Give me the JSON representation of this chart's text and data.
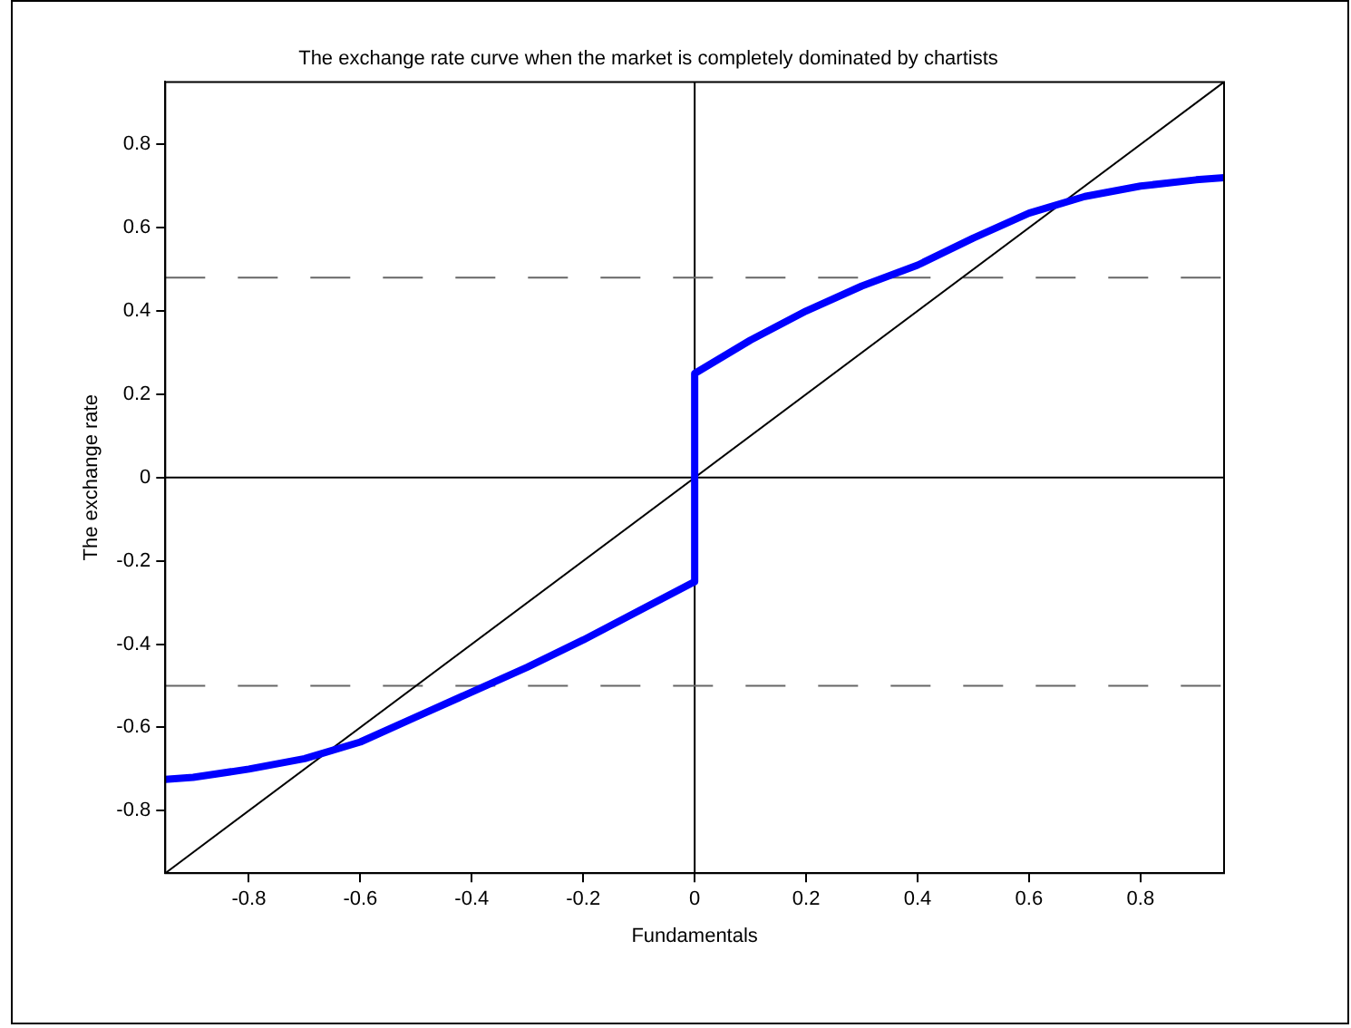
{
  "chart_data": {
    "type": "line",
    "title": "The exchange rate curve when the market is completely dominated by chartists",
    "xlabel": "Fundamentals",
    "ylabel": "The exchange rate",
    "xlim": [
      -0.95,
      0.95
    ],
    "ylim": [
      -0.95,
      0.95
    ],
    "xticks": [
      -0.8,
      -0.6,
      -0.4,
      -0.2,
      0,
      0.2,
      0.4,
      0.6,
      0.8
    ],
    "yticks": [
      -0.8,
      -0.6,
      -0.4,
      -0.2,
      0,
      0.2,
      0.4,
      0.6,
      0.8
    ],
    "grid": false,
    "legend": false,
    "marker": "none",
    "line_style": "solid",
    "series": [
      {
        "color": "#0000ff",
        "x": [
          -0.95,
          -0.9,
          -0.8,
          -0.7,
          -0.6,
          -0.5,
          -0.4,
          -0.3,
          -0.2,
          -0.1,
          0,
          0,
          0.1,
          0.2,
          0.3,
          0.4,
          0.5,
          0.6,
          0.7,
          0.8,
          0.9,
          0.95
        ],
        "values": [
          -0.725,
          -0.72,
          -0.7,
          -0.675,
          -0.635,
          -0.575,
          -0.515,
          -0.455,
          -0.39,
          -0.32,
          -0.25,
          0.25,
          0.33,
          0.4,
          0.46,
          0.51,
          0.575,
          0.635,
          0.675,
          0.7,
          0.715,
          0.72
        ]
      },
      {
        "color": "#000000",
        "x": [
          -0.95,
          0.95
        ],
        "values": [
          -0.95,
          0.95
        ]
      }
    ],
    "ref_lines": [
      {
        "axis": "x",
        "value": 0,
        "color": "#000000",
        "line_style": "solid"
      },
      {
        "axis": "y",
        "value": 0,
        "color": "#000000",
        "line_style": "solid"
      },
      {
        "axis": "y",
        "value": 0.48,
        "color": "#666666",
        "line_style": "dashed"
      },
      {
        "axis": "y",
        "value": -0.5,
        "color": "#666666",
        "line_style": "dashed"
      }
    ]
  }
}
